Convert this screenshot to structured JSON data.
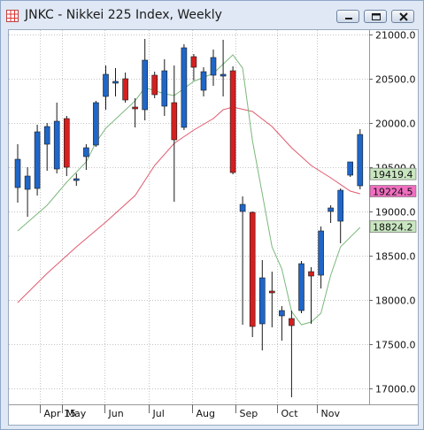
{
  "window": {
    "title": "JNKC - Nikkei 225 Index, Weekly",
    "app_icon": "chart-grid-icon",
    "buttons": {
      "minimize": "minimize-icon",
      "maximize": "maximize-icon",
      "close": "close-icon"
    }
  },
  "colors": {
    "up_candle": "#1f66c8",
    "down_candle": "#d42020",
    "ma_short": "#7cb87c",
    "ma_long": "#e05a6e",
    "label_green": "#c8e6c0",
    "label_pink": "#f06ec0"
  },
  "chart_data": {
    "type": "candlestick",
    "title": "JNKC - Nikkei 225 Index, Weekly",
    "y_ticks": [
      17000,
      17500,
      18000,
      18500,
      19000,
      19500,
      20000,
      20500,
      21000
    ],
    "y_tick_labels": [
      "17000.0",
      "17500.0",
      "18000.0",
      "18500.0",
      "19000.0",
      "19500.0",
      "20000.0",
      "20500.0",
      "21000.0"
    ],
    "ylim": [
      16820,
      21050
    ],
    "x_labels": [
      "Apr 15",
      "May",
      "Jun",
      "Jul",
      "Aug",
      "Sep",
      "Oct",
      "Nov"
    ],
    "x_label_weeks": [
      2.3,
      4.5,
      8.9,
      13.4,
      17.8,
      22.3,
      26.5,
      30.6
    ],
    "grid": true,
    "candles": [
      {
        "week": 0,
        "open": 19270,
        "high": 19760,
        "low": 19100,
        "close": 19590
      },
      {
        "week": 1,
        "open": 19250,
        "high": 19500,
        "low": 18940,
        "close": 19400
      },
      {
        "week": 2,
        "open": 19260,
        "high": 19980,
        "low": 19180,
        "close": 19900
      },
      {
        "week": 3,
        "open": 19760,
        "high": 20000,
        "low": 19460,
        "close": 19960
      },
      {
        "week": 4,
        "open": 19480,
        "high": 20230,
        "low": 19430,
        "close": 20020
      },
      {
        "week": 5,
        "open": 20050,
        "high": 20080,
        "low": 19400,
        "close": 19500
      },
      {
        "week": 6,
        "open": 19350,
        "high": 19430,
        "low": 19290,
        "close": 19370
      },
      {
        "week": 7,
        "open": 19620,
        "high": 19760,
        "low": 19470,
        "close": 19720
      },
      {
        "week": 8,
        "open": 19750,
        "high": 20250,
        "low": 19730,
        "close": 20230
      },
      {
        "week": 9,
        "open": 20300,
        "high": 20650,
        "low": 20150,
        "close": 20550
      },
      {
        "week": 10,
        "open": 20450,
        "high": 20620,
        "low": 20300,
        "close": 20470
      },
      {
        "week": 11,
        "open": 20500,
        "high": 20570,
        "low": 20230,
        "close": 20260
      },
      {
        "week": 12,
        "open": 20180,
        "high": 20280,
        "low": 19950,
        "close": 20160
      },
      {
        "week": 13,
        "open": 20150,
        "high": 20950,
        "low": 20030,
        "close": 20710
      },
      {
        "week": 14,
        "open": 20540,
        "high": 20580,
        "low": 20280,
        "close": 20320
      },
      {
        "week": 15,
        "open": 20190,
        "high": 20720,
        "low": 20080,
        "close": 20590
      },
      {
        "week": 16,
        "open": 20230,
        "high": 20650,
        "low": 19110,
        "close": 19810
      },
      {
        "week": 17,
        "open": 19950,
        "high": 20890,
        "low": 19920,
        "close": 20850
      },
      {
        "week": 18,
        "open": 20750,
        "high": 20780,
        "low": 20480,
        "close": 20630
      },
      {
        "week": 19,
        "open": 20370,
        "high": 20630,
        "low": 20300,
        "close": 20580
      },
      {
        "week": 20,
        "open": 20540,
        "high": 20830,
        "low": 20420,
        "close": 20740
      },
      {
        "week": 21,
        "open": 20530,
        "high": 20940,
        "low": 20300,
        "close": 20550
      },
      {
        "week": 22,
        "open": 20590,
        "high": 20640,
        "low": 19420,
        "close": 19440
      },
      {
        "week": 23,
        "open": 19000,
        "high": 19170,
        "low": 17720,
        "close": 19080
      },
      {
        "week": 24,
        "open": 18990,
        "high": 19000,
        "low": 17580,
        "close": 17700
      },
      {
        "week": 25,
        "open": 17730,
        "high": 18450,
        "low": 17430,
        "close": 18250
      },
      {
        "week": 26,
        "open": 18100,
        "high": 18320,
        "low": 17690,
        "close": 18090
      },
      {
        "week": 27,
        "open": 17820,
        "high": 17930,
        "low": 17540,
        "close": 17880
      },
      {
        "week": 28,
        "open": 17790,
        "high": 17880,
        "low": 16900,
        "close": 17710
      },
      {
        "week": 29,
        "open": 17880,
        "high": 18440,
        "low": 17850,
        "close": 18410
      },
      {
        "week": 30,
        "open": 18320,
        "high": 18370,
        "low": 17730,
        "close": 18270
      },
      {
        "week": 31,
        "open": 18280,
        "high": 18830,
        "low": 18130,
        "close": 18780
      },
      {
        "week": 32,
        "open": 19000,
        "high": 19070,
        "low": 18870,
        "close": 19040
      },
      {
        "week": 33,
        "open": 18890,
        "high": 19260,
        "low": 18640,
        "close": 19240
      },
      {
        "week": 34,
        "open": 19410,
        "high": 19560,
        "low": 19390,
        "close": 19560
      },
      {
        "week": 35,
        "open": 19290,
        "high": 19930,
        "low": 19250,
        "close": 19870
      }
    ],
    "ma_short": [
      [
        0,
        18780
      ],
      [
        3,
        19070
      ],
      [
        5,
        19330
      ],
      [
        7,
        19560
      ],
      [
        8,
        19780
      ],
      [
        9,
        19940
      ],
      [
        12,
        20250
      ],
      [
        13,
        20400
      ],
      [
        15,
        20330
      ],
      [
        16,
        20310
      ],
      [
        18,
        20470
      ],
      [
        20,
        20560
      ],
      [
        22,
        20770
      ],
      [
        23,
        20620
      ],
      [
        24,
        19800
      ],
      [
        25,
        19200
      ],
      [
        26,
        18600
      ],
      [
        27,
        18350
      ],
      [
        28,
        17870
      ],
      [
        29,
        17720
      ],
      [
        30,
        17750
      ],
      [
        31,
        17850
      ],
      [
        32,
        18280
      ],
      [
        33,
        18600
      ],
      [
        35,
        18820
      ]
    ],
    "ma_long": [
      [
        0,
        17970
      ],
      [
        3,
        18300
      ],
      [
        6,
        18600
      ],
      [
        9,
        18880
      ],
      [
        12,
        19180
      ],
      [
        14,
        19520
      ],
      [
        16,
        19770
      ],
      [
        18,
        19920
      ],
      [
        20,
        20050
      ],
      [
        21,
        20150
      ],
      [
        22,
        20180
      ],
      [
        24,
        20130
      ],
      [
        26,
        19960
      ],
      [
        28,
        19720
      ],
      [
        30,
        19520
      ],
      [
        32,
        19380
      ],
      [
        34,
        19230
      ],
      [
        35,
        19200
      ]
    ],
    "price_labels": [
      {
        "text": "19419.4",
        "value": 19419.4,
        "color": "#c8e6c0"
      },
      {
        "text": "19224.5",
        "value": 19224.5,
        "color": "#f06ec0"
      },
      {
        "text": "18824.2",
        "value": 18824.2,
        "color": "#c8e6c0"
      }
    ]
  }
}
